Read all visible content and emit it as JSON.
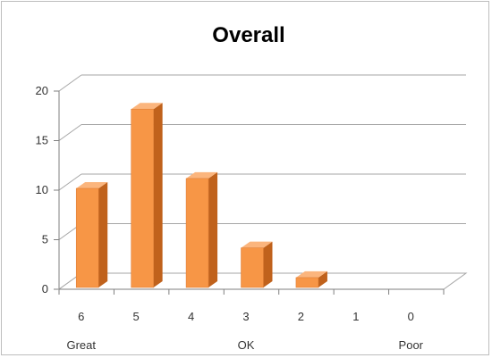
{
  "chart_data": {
    "type": "bar",
    "title": "Overall",
    "categories": [
      "6",
      "5",
      "4",
      "3",
      "2",
      "1",
      "0"
    ],
    "values": [
      10,
      18,
      11,
      4,
      1,
      0,
      0
    ],
    "category_notes": [
      {
        "category": "6",
        "label": "Great"
      },
      {
        "category": "3",
        "label": "OK"
      },
      {
        "category": "0",
        "label": "Poor"
      }
    ],
    "yticks": [
      "0",
      "5",
      "10",
      "15",
      "20"
    ],
    "ylim": [
      0,
      20
    ],
    "grid": true,
    "bar_color": "#f79646",
    "bar_color_dark": "#c0621c",
    "bar_color_top": "#fbb57d"
  }
}
